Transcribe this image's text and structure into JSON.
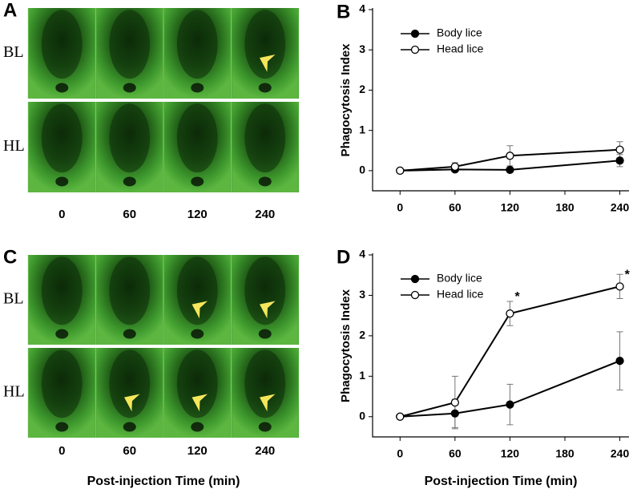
{
  "image_panels": [
    {
      "panel_label": "A",
      "rows": [
        "BL",
        "HL"
      ],
      "times": [
        "0",
        "60",
        "120",
        "240"
      ]
    },
    {
      "panel_label": "C",
      "rows": [
        "BL",
        "HL"
      ],
      "times": [
        "0",
        "60",
        "120",
        "240"
      ],
      "xlabel": "Post-injection Time (min)"
    }
  ],
  "chart_data": [
    {
      "type": "line",
      "panel_label": "B",
      "ylabel": "Phagocytosis Index",
      "x": [
        0,
        60,
        120,
        240
      ],
      "xlim": [
        -30,
        250
      ],
      "xticks": [
        0,
        60,
        120,
        180,
        240
      ],
      "ylim": [
        -0.5,
        4
      ],
      "yticks": [
        0,
        1,
        2,
        3,
        4
      ],
      "legend": "upper left",
      "series": [
        {
          "name": "Body lice",
          "color": "#000000",
          "filled": true,
          "values": [
            0,
            0.03,
            0.02,
            0.25
          ],
          "errors": [
            0,
            0.05,
            0.03,
            0.15
          ]
        },
        {
          "name": "Head lice",
          "color": "#000000",
          "filled": false,
          "values": [
            0,
            0.1,
            0.37,
            0.52
          ],
          "errors": [
            0,
            0.1,
            0.25,
            0.2
          ]
        }
      ]
    },
    {
      "type": "line",
      "panel_label": "D",
      "ylabel": "Phagocytosis Index",
      "xlabel": "Post-injection Time (min)",
      "x": [
        0,
        60,
        120,
        240
      ],
      "xlim": [
        -30,
        250
      ],
      "xticks": [
        0,
        60,
        120,
        180,
        240
      ],
      "ylim": [
        -0.5,
        4
      ],
      "yticks": [
        0,
        1,
        2,
        3,
        4
      ],
      "legend": "upper left",
      "series": [
        {
          "name": "Body lice",
          "color": "#000000",
          "filled": true,
          "values": [
            0,
            0.08,
            0.3,
            1.38
          ],
          "errors": [
            0,
            0.35,
            0.5,
            0.72
          ]
        },
        {
          "name": "Head lice",
          "color": "#000000",
          "filled": false,
          "values": [
            0,
            0.35,
            2.55,
            3.22
          ],
          "errors": [
            0,
            0.65,
            0.3,
            0.3
          ]
        }
      ],
      "annotations": [
        {
          "text": "*",
          "x": 128,
          "y": 2.95
        },
        {
          "text": "*",
          "x": 248,
          "y": 3.5
        }
      ]
    }
  ]
}
